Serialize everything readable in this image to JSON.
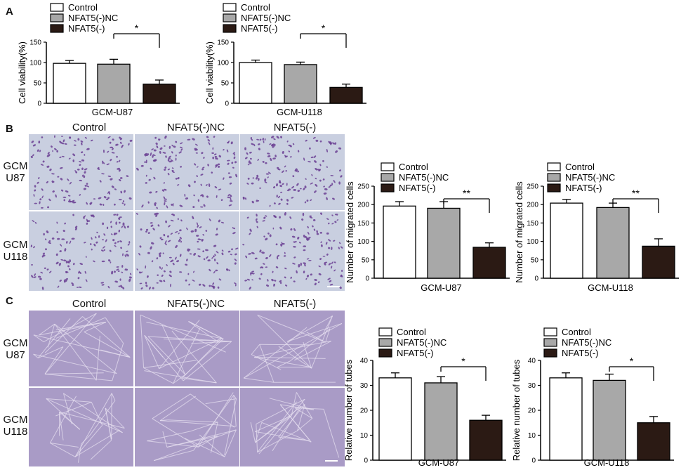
{
  "panels": {
    "a": "A",
    "b": "B",
    "c": "C"
  },
  "micro_headers": [
    "Control",
    "NFAT5(-)NC",
    "NFAT5(-)"
  ],
  "b_rows": [
    {
      "top": "GCM",
      "bottom": "U87"
    },
    {
      "top": "GCM",
      "bottom": "U118"
    }
  ],
  "c_rows": [
    {
      "top": "GCM",
      "bottom": "U87"
    },
    {
      "top": "GCM",
      "bottom": "U118"
    }
  ],
  "colors": {
    "control": "#ffffff",
    "nc": "#a8a8a8",
    "nfat": "#2b1a14",
    "transwell_bg": "#c9cfe0",
    "transwell_cells": "#6b3f93",
    "tube_bg": "#a99bc6",
    "tube_lines": "#e6dff0"
  },
  "chart_data": [
    {
      "type": "bar",
      "xlabel": "GCM-U87",
      "ylabel": "Cell viability(%)",
      "ylim": [
        0,
        150
      ],
      "yticks": [
        "0",
        "50",
        "100",
        "150"
      ],
      "legend": [
        "Control",
        "NFAT5(-)NC",
        "NFAT5(-)"
      ],
      "categories": [
        "Control",
        "NFAT5(-)NC",
        "NFAT5(-)"
      ],
      "values": [
        98,
        96,
        47
      ],
      "errors": [
        7,
        12,
        10
      ],
      "significance": "*"
    },
    {
      "type": "bar",
      "xlabel": "GCM-U118",
      "ylabel": "Cell viability(%)",
      "ylim": [
        0,
        150
      ],
      "yticks": [
        "0",
        "50",
        "100",
        "150"
      ],
      "legend": [
        "Control",
        "NFAT5(-)NC",
        "NFAT5(-)"
      ],
      "categories": [
        "Control",
        "NFAT5(-)NC",
        "NFAT5(-)"
      ],
      "values": [
        100,
        95,
        39
      ],
      "errors": [
        6,
        6,
        8
      ],
      "significance": "*"
    },
    {
      "type": "bar",
      "xlabel": "GCM-U87",
      "ylabel": "Number of migrated cells",
      "ylim": [
        0,
        250
      ],
      "yticks": [
        "0",
        "50",
        "100",
        "150",
        "200",
        "250"
      ],
      "legend": [
        "Control",
        "NFAT5(-)NC",
        "NFAT5(-)"
      ],
      "categories": [
        "Control",
        "NFAT5(-)NC",
        "NFAT5(-)"
      ],
      "values": [
        196,
        190,
        84
      ],
      "errors": [
        12,
        18,
        12
      ],
      "significance": "**"
    },
    {
      "type": "bar",
      "xlabel": "GCM-U118",
      "ylabel": "Number of migrated cells",
      "ylim": [
        0,
        250
      ],
      "yticks": [
        "0",
        "50",
        "100",
        "150",
        "200",
        "250"
      ],
      "legend": [
        "Control",
        "NFAT5(-)NC",
        "NFAT5(-)"
      ],
      "categories": [
        "Control",
        "NFAT5(-)NC",
        "NFAT5(-)"
      ],
      "values": [
        204,
        192,
        87
      ],
      "errors": [
        10,
        12,
        20
      ],
      "significance": "**"
    },
    {
      "type": "bar",
      "xlabel": "GCM-U87",
      "ylabel": "Relative number of tubes",
      "ylim": [
        0,
        40
      ],
      "yticks": [
        "0",
        "10",
        "20",
        "30",
        "40"
      ],
      "legend": [
        "Control",
        "NFAT5(-)NC",
        "NFAT5(-)"
      ],
      "categories": [
        "Control",
        "NFAT5(-)NC",
        "NFAT5(-)"
      ],
      "values": [
        33,
        31,
        16
      ],
      "errors": [
        2,
        2.5,
        2
      ],
      "significance": "*"
    },
    {
      "type": "bar",
      "xlabel": "GCM-U118",
      "ylabel": "Relative number of tubes",
      "ylim": [
        0,
        40
      ],
      "yticks": [
        "0",
        "10",
        "20",
        "30",
        "40"
      ],
      "legend": [
        "Control",
        "NFAT5(-)NC",
        "NFAT5(-)"
      ],
      "categories": [
        "Control",
        "NFAT5(-)NC",
        "NFAT5(-)"
      ],
      "values": [
        33,
        32,
        15
      ],
      "errors": [
        2,
        2.5,
        2.5
      ],
      "significance": "*"
    }
  ]
}
